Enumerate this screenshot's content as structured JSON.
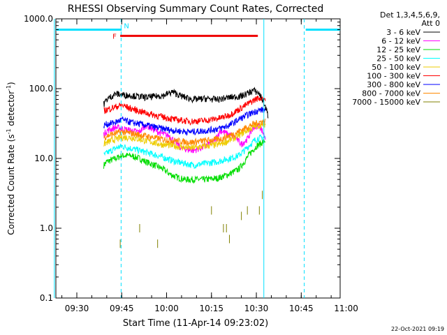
{
  "chart_data": {
    "type": "line",
    "title": "RHESSI Observing Summary Count Rates, Corrected",
    "xlabel": "Start Time (11-Apr-14 09:23:02)",
    "ylabel": "Corrected Count Rate (s",
    "ylabel_sup": "-1",
    "ylabel_mid": " detector",
    "ylabel_sup2": "-1",
    "ylabel_end": ")",
    "yscale": "log",
    "ylim": [
      0.1,
      1000
    ],
    "xlim_minutes": [
      0,
      95
    ],
    "x_ticks": [
      {
        "label": "09:30",
        "minutes": 7
      },
      {
        "label": "09:45",
        "minutes": 22
      },
      {
        "label": "10:00",
        "minutes": 37
      },
      {
        "label": "10:15",
        "minutes": 52
      },
      {
        "label": "10:30",
        "minutes": 67
      },
      {
        "label": "10:45",
        "minutes": 82
      },
      {
        "label": "11:00",
        "minutes": 97
      }
    ],
    "y_ticks": [
      {
        "label": "0.1",
        "value": 0.1
      },
      {
        "label": "1.0",
        "value": 1
      },
      {
        "label": "10.0",
        "value": 10
      },
      {
        "label": "100.0",
        "value": 100
      },
      {
        "label": "1000.0",
        "value": 1000
      }
    ],
    "legend_header": [
      "Det 1,3,4,5,6,9,",
      "Att 0"
    ],
    "legend_position": "right",
    "timestamp": "22-Oct-2021 09:19",
    "markers": {
      "flare_label": "F",
      "night_label": "N",
      "flare_interval_minutes": [
        21.5,
        67.5
      ],
      "flare_color": "#ee0000",
      "night_color": "#00e0ff",
      "night_level": 700,
      "night_bars_minutes": [
        [
          0,
          22
        ],
        [
          83.5,
          95
        ]
      ],
      "day_boundaries_minutes": [
        -0.5,
        21.8,
        69.5,
        83
      ]
    },
    "series": [
      {
        "name": "3 - 6 keV",
        "color": "#000000",
        "t": [
          16,
          17,
          20,
          22,
          25,
          30,
          36,
          39,
          42,
          46,
          50,
          54,
          58,
          62,
          65,
          66,
          68,
          69,
          70,
          71
        ],
        "v": [
          60,
          70,
          85,
          82,
          80,
          75,
          80,
          90,
          78,
          70,
          72,
          70,
          75,
          78,
          90,
          95,
          85,
          70,
          55,
          40
        ]
      },
      {
        "name": "6 - 12 keV",
        "color": "#ff00ff",
        "t": [
          16,
          17,
          20,
          22,
          25,
          28,
          30,
          32,
          35,
          38,
          40,
          42,
          46,
          50,
          53,
          55,
          58,
          60,
          62,
          64,
          66,
          68,
          70
        ],
        "v": [
          22,
          25,
          28,
          27,
          25,
          24,
          30,
          27,
          23,
          21,
          17,
          14,
          13,
          15,
          18,
          25,
          22,
          20,
          16,
          19,
          28,
          30,
          20
        ]
      },
      {
        "name": "12 - 25 keV",
        "color": "#00dd00",
        "t": [
          16,
          17,
          20,
          22,
          25,
          28,
          30,
          33,
          36,
          38,
          40,
          43,
          46,
          50,
          54,
          58,
          61,
          63,
          65,
          67,
          69,
          70
        ],
        "v": [
          8,
          9,
          10,
          11,
          11,
          10,
          9,
          8,
          7,
          6,
          5.5,
          5,
          5,
          5,
          5.2,
          6,
          7,
          9,
          12,
          15,
          17,
          18
        ]
      },
      {
        "name": "25 - 50 keV",
        "color": "#00ffff",
        "t": [
          16,
          17,
          20,
          22,
          25,
          28,
          31,
          34,
          37,
          40,
          43,
          46,
          50,
          54,
          58,
          61,
          63,
          65,
          67,
          69,
          70
        ],
        "v": [
          11,
          12,
          14,
          15,
          14,
          13,
          12,
          11,
          10,
          9,
          8.5,
          8,
          8.5,
          9,
          10,
          11,
          13,
          16,
          19,
          20,
          20
        ]
      },
      {
        "name": "50 - 100 keV",
        "color": "#eecc00",
        "t": [
          16,
          17,
          20,
          22,
          25,
          30,
          35,
          40,
          45,
          50,
          55,
          60,
          63,
          66,
          68,
          70
        ],
        "v": [
          16,
          17,
          19,
          20,
          20,
          18,
          16,
          15,
          14,
          15,
          16,
          20,
          24,
          28,
          30,
          31
        ]
      },
      {
        "name": "100 - 300 keV",
        "color": "#ff0000",
        "t": [
          16,
          17,
          20,
          22,
          25,
          30,
          35,
          40,
          45,
          50,
          55,
          58,
          61,
          64,
          67,
          69,
          70
        ],
        "v": [
          48,
          50,
          55,
          58,
          52,
          45,
          40,
          36,
          34,
          35,
          38,
          42,
          50,
          60,
          72,
          75,
          70
        ]
      },
      {
        "name": "300 - 800 keV",
        "color": "#0000ff",
        "t": [
          16,
          17,
          20,
          22,
          25,
          30,
          35,
          40,
          45,
          50,
          55,
          58,
          61,
          64,
          67,
          69,
          70
        ],
        "v": [
          30,
          31,
          33,
          36,
          33,
          30,
          27,
          25,
          24,
          25,
          27,
          30,
          36,
          42,
          48,
          50,
          48
        ]
      },
      {
        "name": "800 - 7000 keV",
        "color": "#ff8800",
        "t": [
          16,
          17,
          20,
          22,
          25,
          30,
          35,
          40,
          45,
          50,
          55,
          60,
          63,
          66,
          68,
          70
        ],
        "v": [
          20,
          21,
          23,
          24,
          23,
          21,
          19,
          18,
          17,
          18,
          19,
          23,
          27,
          31,
          33,
          34
        ]
      },
      {
        "name": "7000 - 15000 keV",
        "color": "#808000",
        "t": [],
        "v": []
      }
    ],
    "sparse_points": [
      {
        "series": "7000 - 15000 keV",
        "t": [
          21.5,
          28,
          34,
          52,
          56,
          57,
          58,
          62,
          64,
          68,
          69
        ],
        "v": [
          0.6,
          1.0,
          0.6,
          1.8,
          1.0,
          1.0,
          0.7,
          1.5,
          1.8,
          1.8,
          3.0
        ]
      }
    ]
  }
}
